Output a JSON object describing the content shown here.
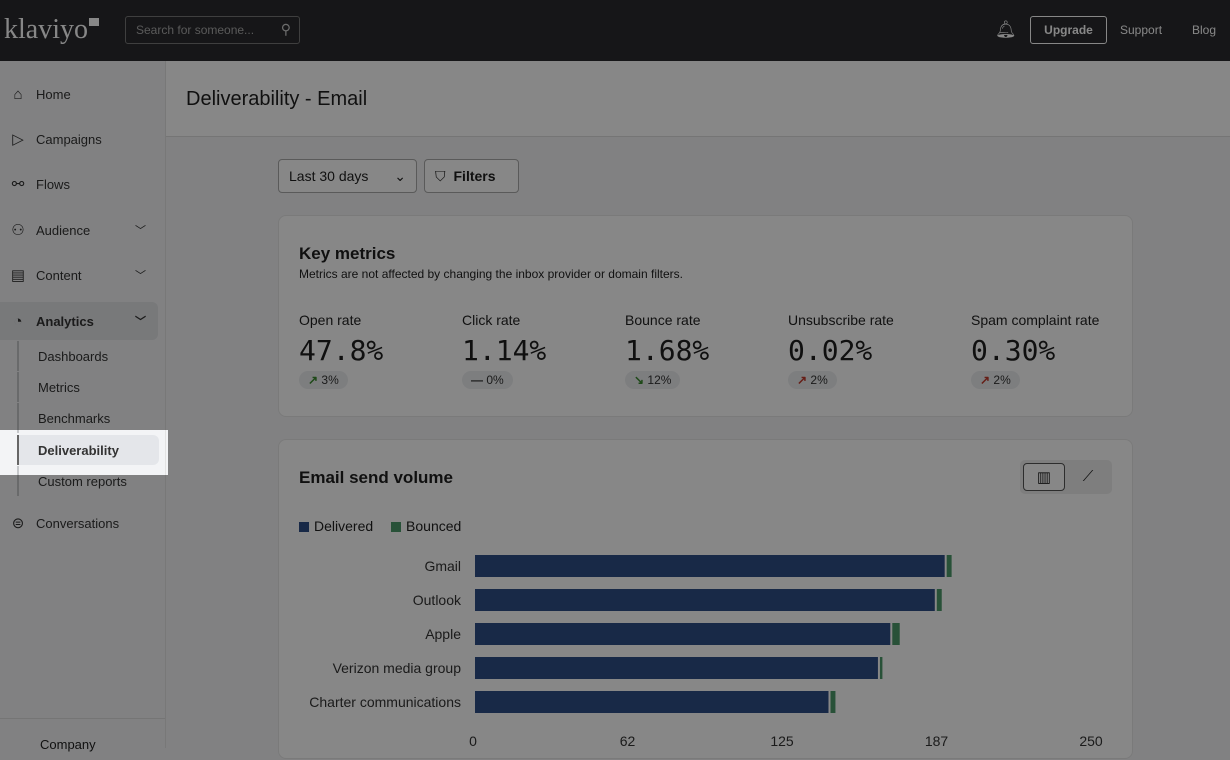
{
  "topbar": {
    "logo": "klaviyo",
    "search_placeholder": "Search for someone...",
    "upgrade": "Upgrade",
    "support": "Support",
    "blog": "Blog"
  },
  "sidebar": {
    "items": [
      {
        "label": "Home",
        "icon": "home-icon"
      },
      {
        "label": "Campaigns",
        "icon": "send-icon"
      },
      {
        "label": "Flows",
        "icon": "flows-icon"
      },
      {
        "label": "Audience",
        "icon": "people-icon"
      },
      {
        "label": "Content",
        "icon": "content-icon"
      },
      {
        "label": "Analytics",
        "icon": "pie-chart-icon"
      },
      {
        "label": "Conversations",
        "icon": "chat-icon"
      }
    ],
    "analytics_sub": [
      "Dashboards",
      "Metrics",
      "Benchmarks",
      "Deliverability",
      "Custom reports"
    ],
    "company": "Company",
    "selected": "Deliverability"
  },
  "page": {
    "title": "Deliverability - Email",
    "date_range": "Last 30 days",
    "filters": "Filters"
  },
  "key_metrics": {
    "title": "Key metrics",
    "subtitle": "Metrics are not affected by changing the inbox provider or domain filters.",
    "metrics": [
      {
        "label": "Open rate",
        "value": "47.8%",
        "change": "3%",
        "trend": "up",
        "color": "#3a8a2e"
      },
      {
        "label": "Click rate",
        "value": "1.14%",
        "change": "0%",
        "trend": "flat",
        "color": "#333333"
      },
      {
        "label": "Bounce rate",
        "value": "1.68%",
        "change": "12%",
        "trend": "down",
        "color": "#3a8a2e"
      },
      {
        "label": "Unsubscribe rate",
        "value": "0.02%",
        "change": "2%",
        "trend": "up",
        "color": "#c0392b"
      },
      {
        "label": "Spam complaint rate",
        "value": "0.30%",
        "change": "2%",
        "trend": "up",
        "color": "#c0392b"
      }
    ]
  },
  "volume": {
    "title": "Email send volume"
  },
  "chart_data": {
    "type": "bar",
    "orientation": "horizontal",
    "stacked": true,
    "categories": [
      "Gmail",
      "Outlook",
      "Apple",
      "Verizon media group",
      "Charter communications"
    ],
    "series": [
      {
        "name": "Delivered",
        "color": "#2f4f86",
        "values": [
          190,
          186,
          168,
          163,
          143
        ]
      },
      {
        "name": "Bounced",
        "color": "#4c9a6a",
        "values": [
          2,
          2,
          3,
          1,
          2
        ]
      }
    ],
    "xticks": [
      "0",
      "62",
      "125",
      "187",
      "250"
    ],
    "xlim": [
      0,
      250
    ],
    "legend": "top-left"
  }
}
